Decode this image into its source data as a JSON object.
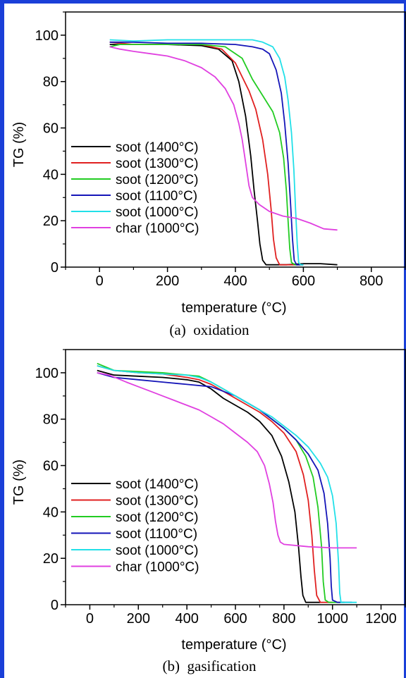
{
  "chart_data": [
    {
      "type": "line",
      "caption": "(a)  oxidation",
      "xlabel": "temperature (°C)",
      "ylabel": "TG (%)",
      "xlim": [
        -100,
        900
      ],
      "ylim": [
        0,
        110
      ],
      "xticks": [
        0,
        200,
        400,
        600,
        800
      ],
      "yticks": [
        0,
        20,
        40,
        60,
        80,
        100
      ],
      "legend_position": "left",
      "series": [
        {
          "name": "soot (1400°C)",
          "color": "#000000",
          "points": [
            [
              30,
              96
            ],
            [
              100,
              96
            ],
            [
              200,
              96
            ],
            [
              300,
              95.5
            ],
            [
              350,
              94
            ],
            [
              390,
              89
            ],
            [
              410,
              80
            ],
            [
              430,
              65
            ],
            [
              445,
              48
            ],
            [
              455,
              33
            ],
            [
              465,
              20
            ],
            [
              472,
              10
            ],
            [
              480,
              3
            ],
            [
              490,
              1
            ],
            [
              550,
              1
            ],
            [
              600,
              1.5
            ],
            [
              650,
              1.5
            ],
            [
              700,
              1
            ]
          ]
        },
        {
          "name": "soot (1300°C)",
          "color": "#e02020",
          "points": [
            [
              30,
              97
            ],
            [
              100,
              96
            ],
            [
              200,
              96
            ],
            [
              300,
              96
            ],
            [
              360,
              94
            ],
            [
              400,
              88
            ],
            [
              420,
              82
            ],
            [
              440,
              76
            ],
            [
              460,
              68
            ],
            [
              480,
              55
            ],
            [
              495,
              40
            ],
            [
              505,
              25
            ],
            [
              512,
              12
            ],
            [
              520,
              4
            ],
            [
              530,
              1
            ],
            [
              560,
              1
            ],
            [
              600,
              1
            ]
          ]
        },
        {
          "name": "soot (1200°C)",
          "color": "#22cc22",
          "points": [
            [
              30,
              95
            ],
            [
              60,
              96
            ],
            [
              100,
              96
            ],
            [
              200,
              96
            ],
            [
              300,
              96
            ],
            [
              370,
              95
            ],
            [
              420,
              90
            ],
            [
              450,
              81
            ],
            [
              480,
              74
            ],
            [
              510,
              67
            ],
            [
              530,
              58
            ],
            [
              542,
              47
            ],
            [
              550,
              33
            ],
            [
              555,
              20
            ],
            [
              560,
              8
            ],
            [
              565,
              2
            ],
            [
              575,
              1
            ],
            [
              600,
              1
            ]
          ]
        },
        {
          "name": "soot (1100°C)",
          "color": "#1515b8",
          "points": [
            [
              30,
              97
            ],
            [
              100,
              97
            ],
            [
              200,
              96.5
            ],
            [
              300,
              96.5
            ],
            [
              400,
              96
            ],
            [
              450,
              95
            ],
            [
              480,
              94
            ],
            [
              500,
              92
            ],
            [
              520,
              85
            ],
            [
              535,
              75
            ],
            [
              545,
              62
            ],
            [
              555,
              45
            ],
            [
              562,
              28
            ],
            [
              568,
              12
            ],
            [
              573,
              3
            ],
            [
              580,
              1
            ],
            [
              600,
              1
            ]
          ]
        },
        {
          "name": "soot (1000°C)",
          "color": "#22e0e8",
          "points": [
            [
              30,
              98
            ],
            [
              100,
              97.5
            ],
            [
              200,
              98
            ],
            [
              300,
              98
            ],
            [
              400,
              98
            ],
            [
              450,
              98
            ],
            [
              480,
              97
            ],
            [
              510,
              95
            ],
            [
              530,
              90
            ],
            [
              545,
              82
            ],
            [
              555,
              72
            ],
            [
              565,
              58
            ],
            [
              572,
              42
            ],
            [
              577,
              25
            ],
            [
              582,
              10
            ],
            [
              586,
              2
            ],
            [
              592,
              1
            ],
            [
              600,
              1
            ]
          ]
        },
        {
          "name": "char (1000°C)",
          "color": "#e040e0",
          "points": [
            [
              30,
              95
            ],
            [
              60,
              94
            ],
            [
              100,
              93
            ],
            [
              150,
              92
            ],
            [
              200,
              91
            ],
            [
              250,
              89
            ],
            [
              300,
              86
            ],
            [
              340,
              82
            ],
            [
              370,
              77
            ],
            [
              395,
              70
            ],
            [
              410,
              62
            ],
            [
              420,
              55
            ],
            [
              430,
              45
            ],
            [
              440,
              35
            ],
            [
              450,
              30
            ],
            [
              470,
              27
            ],
            [
              500,
              24
            ],
            [
              540,
              22
            ],
            [
              580,
              21
            ],
            [
              620,
              19
            ],
            [
              660,
              16.5
            ],
            [
              700,
              16
            ]
          ]
        }
      ]
    },
    {
      "type": "line",
      "caption": "(b)  gasification",
      "xlabel": "temperature (°C)",
      "ylabel": "TG (%)",
      "xlim": [
        -100,
        1300
      ],
      "ylim": [
        0,
        110
      ],
      "xticks": [
        0,
        200,
        400,
        600,
        800,
        1000,
        1200
      ],
      "yticks": [
        0,
        20,
        40,
        60,
        80,
        100
      ],
      "legend_position": "left",
      "series": [
        {
          "name": "soot (1400°C)",
          "color": "#000000",
          "points": [
            [
              30,
              101
            ],
            [
              100,
              99
            ],
            [
              200,
              98.5
            ],
            [
              300,
              98
            ],
            [
              400,
              97
            ],
            [
              450,
              96
            ],
            [
              500,
              93
            ],
            [
              550,
              89
            ],
            [
              600,
              86
            ],
            [
              650,
              83
            ],
            [
              700,
              79
            ],
            [
              750,
              73
            ],
            [
              790,
              64
            ],
            [
              820,
              53
            ],
            [
              845,
              40
            ],
            [
              860,
              25
            ],
            [
              870,
              12
            ],
            [
              878,
              4
            ],
            [
              890,
              1
            ],
            [
              950,
              1
            ]
          ]
        },
        {
          "name": "soot (1300°C)",
          "color": "#e02020",
          "points": [
            [
              30,
              103
            ],
            [
              100,
              101
            ],
            [
              200,
              100
            ],
            [
              300,
              99.5
            ],
            [
              400,
              98
            ],
            [
              450,
              97
            ],
            [
              500,
              95
            ],
            [
              550,
              92
            ],
            [
              600,
              89
            ],
            [
              650,
              86
            ],
            [
              700,
              83
            ],
            [
              750,
              79
            ],
            [
              800,
              74
            ],
            [
              850,
              66
            ],
            [
              880,
              56
            ],
            [
              900,
              45
            ],
            [
              915,
              30
            ],
            [
              925,
              15
            ],
            [
              935,
              4
            ],
            [
              950,
              1
            ],
            [
              1000,
              1
            ]
          ]
        },
        {
          "name": "soot (1200°C)",
          "color": "#22cc22",
          "points": [
            [
              30,
              104
            ],
            [
              100,
              101
            ],
            [
              200,
              100.5
            ],
            [
              300,
              100
            ],
            [
              400,
              99
            ],
            [
              450,
              98.5
            ],
            [
              500,
              96
            ],
            [
              550,
              93
            ],
            [
              600,
              90
            ],
            [
              650,
              87
            ],
            [
              700,
              84
            ],
            [
              750,
              80
            ],
            [
              800,
              76
            ],
            [
              850,
              71
            ],
            [
              890,
              64
            ],
            [
              920,
              55
            ],
            [
              940,
              42
            ],
            [
              955,
              25
            ],
            [
              962,
              10
            ],
            [
              970,
              2
            ],
            [
              985,
              1
            ],
            [
              1050,
              1
            ]
          ]
        },
        {
          "name": "soot (1100°C)",
          "color": "#1515b8",
          "points": [
            [
              30,
              100
            ],
            [
              100,
              98
            ],
            [
              200,
              97
            ],
            [
              300,
              96
            ],
            [
              400,
              95
            ],
            [
              500,
              94
            ],
            [
              550,
              92
            ],
            [
              600,
              90
            ],
            [
              650,
              87
            ],
            [
              700,
              84
            ],
            [
              750,
              80
            ],
            [
              800,
              76
            ],
            [
              850,
              71
            ],
            [
              900,
              65
            ],
            [
              940,
              58
            ],
            [
              965,
              48
            ],
            [
              980,
              35
            ],
            [
              990,
              20
            ],
            [
              995,
              8
            ],
            [
              1000,
              2
            ],
            [
              1020,
              1
            ],
            [
              1080,
              1
            ]
          ]
        },
        {
          "name": "soot (1000°C)",
          "color": "#22e0e8",
          "points": [
            [
              30,
              103
            ],
            [
              100,
              101
            ],
            [
              200,
              100
            ],
            [
              300,
              99.5
            ],
            [
              400,
              99
            ],
            [
              450,
              98
            ],
            [
              500,
              96
            ],
            [
              550,
              93
            ],
            [
              600,
              90
            ],
            [
              650,
              87
            ],
            [
              700,
              84
            ],
            [
              750,
              81
            ],
            [
              800,
              77
            ],
            [
              850,
              73
            ],
            [
              900,
              68
            ],
            [
              950,
              61
            ],
            [
              980,
              55
            ],
            [
              1000,
              47
            ],
            [
              1015,
              35
            ],
            [
              1025,
              18
            ],
            [
              1030,
              5
            ],
            [
              1035,
              1
            ],
            [
              1100,
              1
            ]
          ]
        },
        {
          "name": "char (1000°C)",
          "color": "#e040e0",
          "points": [
            [
              30,
              100
            ],
            [
              80,
              99
            ],
            [
              150,
              96
            ],
            [
              200,
              94
            ],
            [
              250,
              92
            ],
            [
              300,
              90
            ],
            [
              350,
              88
            ],
            [
              400,
              86
            ],
            [
              450,
              84
            ],
            [
              500,
              81
            ],
            [
              550,
              78
            ],
            [
              600,
              74
            ],
            [
              650,
              70
            ],
            [
              690,
              66
            ],
            [
              720,
              60
            ],
            [
              740,
              52
            ],
            [
              755,
              44
            ],
            [
              765,
              36
            ],
            [
              775,
              30
            ],
            [
              785,
              27
            ],
            [
              800,
              26
            ],
            [
              900,
              25
            ],
            [
              1000,
              24.5
            ],
            [
              1100,
              24.5
            ]
          ]
        }
      ]
    }
  ]
}
